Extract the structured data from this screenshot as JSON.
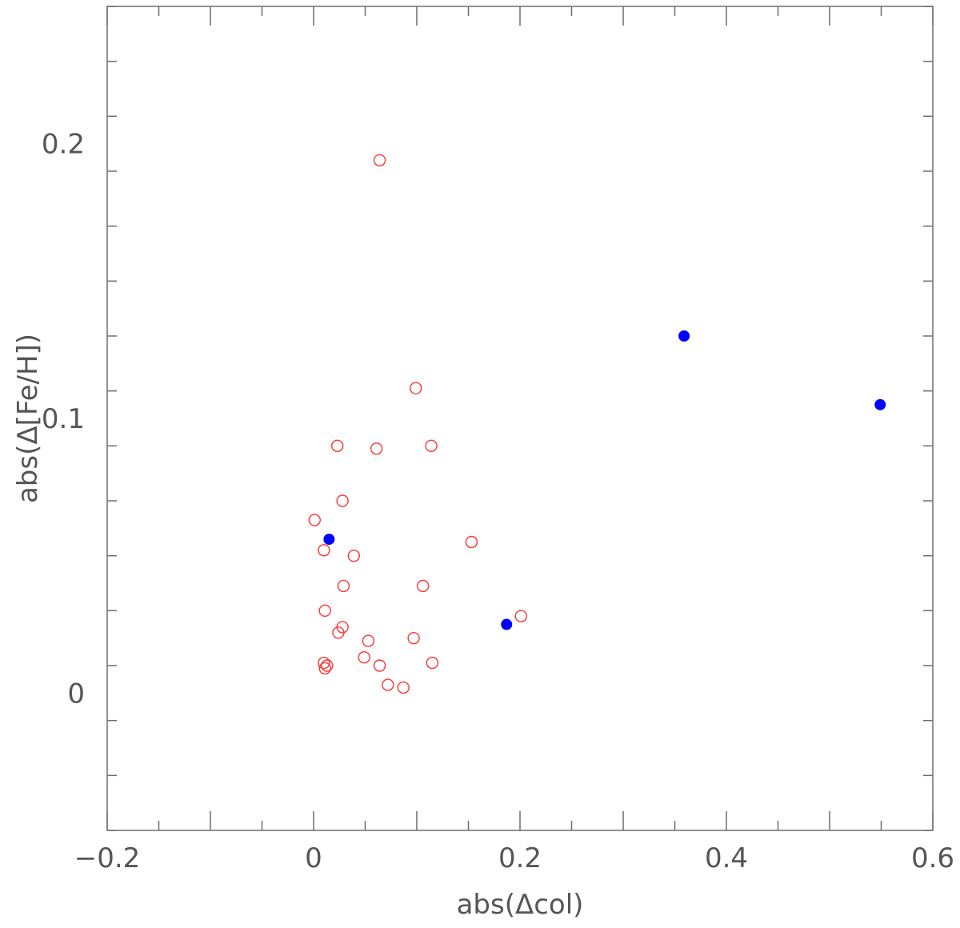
{
  "chart_data": {
    "type": "scatter",
    "title": "",
    "xlabel": "abs(Δcol)",
    "ylabel": "abs(Δ[Fe/H])",
    "xlim": [
      -0.2,
      0.6
    ],
    "ylim": [
      -0.05,
      0.25
    ],
    "x_ticks": [
      {
        "value": -0.2,
        "label": "−0.2"
      },
      {
        "value": 0,
        "label": "0"
      },
      {
        "value": 0.2,
        "label": "0.2"
      },
      {
        "value": 0.4,
        "label": "0.4"
      },
      {
        "value": 0.6,
        "label": "0.6"
      }
    ],
    "y_ticks": [
      {
        "value": 0,
        "label": "0"
      },
      {
        "value": 0.1,
        "label": "0.1"
      },
      {
        "value": 0.2,
        "label": "0.2"
      }
    ],
    "grid": false,
    "series": [
      {
        "marker": "open-circle",
        "color": "#ff3333",
        "points": [
          [
            0.064,
            0.194
          ],
          [
            0.099,
            0.111
          ],
          [
            0.023,
            0.09
          ],
          [
            0.061,
            0.089
          ],
          [
            0.114,
            0.09
          ],
          [
            0.028,
            0.07
          ],
          [
            0.001,
            0.063
          ],
          [
            0.01,
            0.052
          ],
          [
            0.039,
            0.05
          ],
          [
            0.153,
            0.055
          ],
          [
            0.029,
            0.039
          ],
          [
            0.106,
            0.039
          ],
          [
            0.011,
            0.03
          ],
          [
            0.028,
            0.024
          ],
          [
            0.024,
            0.022
          ],
          [
            0.053,
            0.019
          ],
          [
            0.097,
            0.02
          ],
          [
            0.049,
            0.013
          ],
          [
            0.064,
            0.01
          ],
          [
            0.01,
            0.011
          ],
          [
            0.013,
            0.01
          ],
          [
            0.011,
            0.009
          ],
          [
            0.115,
            0.011
          ],
          [
            0.072,
            0.003
          ],
          [
            0.087,
            0.002
          ],
          [
            0.201,
            0.028
          ]
        ]
      },
      {
        "marker": "filled-circle",
        "color": "#0000ff",
        "points": [
          [
            0.015,
            0.056
          ],
          [
            0.187,
            0.025
          ],
          [
            0.359,
            0.13
          ],
          [
            0.549,
            0.105
          ]
        ]
      }
    ]
  }
}
